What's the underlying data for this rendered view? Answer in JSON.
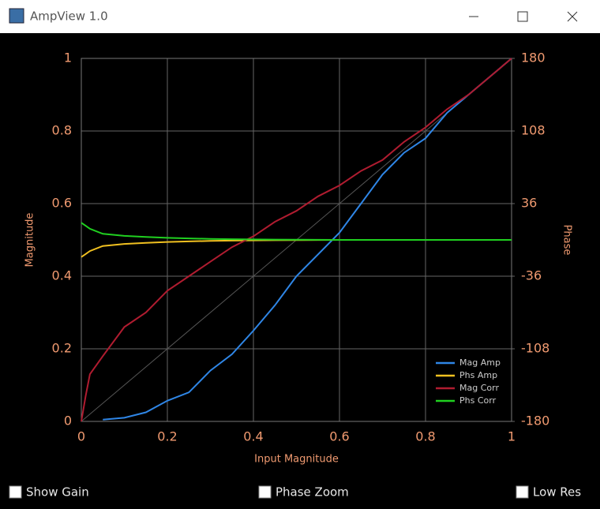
{
  "window": {
    "title": "AmpView 1.0"
  },
  "chart_data": {
    "type": "line",
    "xlabel": "Input Magnitude",
    "ylabel": "Magnitude",
    "y2label": "Phase",
    "x": [
      0,
      0.01,
      0.02,
      0.05,
      0.1,
      0.15,
      0.2,
      0.25,
      0.3,
      0.35,
      0.4,
      0.45,
      0.5,
      0.55,
      0.6,
      0.65,
      0.7,
      0.75,
      0.8,
      0.85,
      0.9,
      0.95,
      1
    ],
    "series": [
      {
        "name": "Mag Amp",
        "color": "#2f86e6",
        "values": [
          null,
          null,
          null,
          0.005,
          0.01,
          0.025,
          0.057,
          0.08,
          0.14,
          0.185,
          0.25,
          0.32,
          0.4,
          0.46,
          0.52,
          0.6,
          0.68,
          0.74,
          0.78,
          0.85,
          0.9,
          0.95,
          1
        ]
      },
      {
        "name": "Phs Amp",
        "color": "#f0c020",
        "axis": "y2",
        "values": [
          -17,
          -14,
          -11,
          -6,
          -4,
          -3,
          -2,
          -1.5,
          -1,
          -0.7,
          -0.5,
          -0.3,
          -0.2,
          -0.1,
          0,
          0,
          0,
          0,
          0,
          0,
          0,
          0,
          0
        ]
      },
      {
        "name": "Mag Corr",
        "color": "#b01c30",
        "values": [
          0,
          0.07,
          0.13,
          0.18,
          0.26,
          0.3,
          0.36,
          0.4,
          0.44,
          0.48,
          0.51,
          0.55,
          0.58,
          0.62,
          0.65,
          0.69,
          0.72,
          0.77,
          0.81,
          0.86,
          0.9,
          0.95,
          1
        ]
      },
      {
        "name": "Phs Corr",
        "color": "#20d020",
        "axis": "y2",
        "values": [
          17,
          14,
          11,
          6,
          4,
          3,
          2,
          1.5,
          1,
          0.7,
          0.5,
          0.3,
          0.2,
          0.1,
          0,
          0,
          0,
          0,
          0,
          0,
          0,
          0,
          0
        ]
      }
    ],
    "xlim": [
      0,
      1
    ],
    "xticks": [
      0,
      0.2,
      0.4,
      0.6,
      0.8,
      1
    ],
    "ylim": [
      0,
      1
    ],
    "yticks": [
      0,
      0.2,
      0.4,
      0.6,
      0.8,
      1
    ],
    "y2lim": [
      -180,
      180
    ],
    "y2ticks": [
      -180,
      -108,
      -36,
      36,
      108,
      180
    ],
    "grid": true,
    "legend": "lower right"
  },
  "controls": [
    {
      "label": "Show Gain",
      "checked": false
    },
    {
      "label": "Phase Zoom",
      "checked": false
    },
    {
      "label": "Low Res",
      "checked": false
    }
  ]
}
